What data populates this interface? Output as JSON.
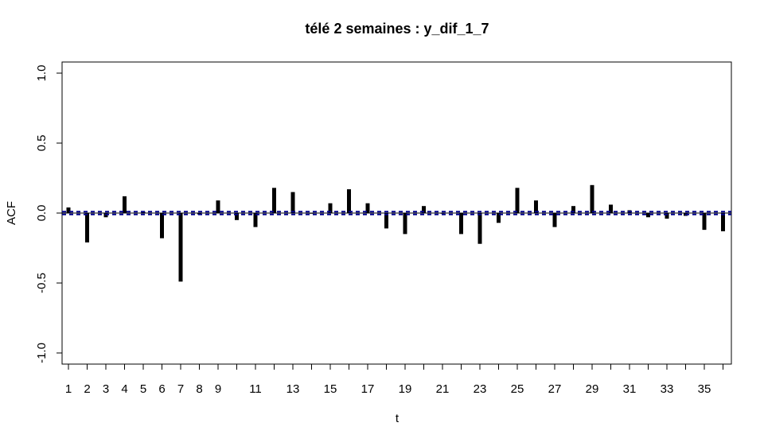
{
  "chart_data": {
    "type": "bar",
    "title": "télé 2 semaines : y_dif_1_7",
    "xlabel": "t",
    "ylabel": "ACF",
    "ylim": [
      -1.0,
      1.0
    ],
    "xlim": [
      0.5,
      36
    ],
    "x_ticks": [
      1,
      2,
      3,
      4,
      5,
      6,
      7,
      8,
      9,
      11,
      13,
      15,
      17,
      19,
      21,
      23,
      25,
      27,
      29,
      31,
      33,
      35
    ],
    "x_tick_labels": [
      "1",
      "2",
      "3",
      "4",
      "5",
      "6",
      "7",
      "8",
      "9",
      "11",
      "13",
      "15",
      "17",
      "19",
      "21",
      "23",
      "25",
      "27",
      "29",
      "31",
      "33",
      "35"
    ],
    "y_ticks": [
      -1.0,
      -0.5,
      0.0,
      0.5,
      1.0
    ],
    "y_tick_labels": [
      "-1.0",
      "-0.5",
      "0.0",
      "0.5",
      "1.0"
    ],
    "lags": [
      1,
      2,
      3,
      4,
      5,
      6,
      7,
      8,
      9,
      10,
      11,
      12,
      13,
      14,
      15,
      16,
      17,
      18,
      19,
      20,
      21,
      22,
      23,
      24,
      25,
      26,
      27,
      28,
      29,
      30,
      31,
      32,
      33,
      34,
      35,
      36
    ],
    "values": [
      0.04,
      -0.21,
      -0.03,
      0.12,
      0.01,
      -0.18,
      -0.49,
      -0.01,
      0.09,
      -0.05,
      -0.1,
      0.18,
      0.15,
      0.0,
      0.07,
      0.17,
      0.07,
      -0.11,
      -0.15,
      0.05,
      0.0,
      -0.15,
      -0.22,
      -0.07,
      0.18,
      0.09,
      -0.1,
      0.05,
      0.2,
      0.06,
      0.02,
      -0.03,
      -0.04,
      -0.02,
      -0.12,
      -0.13
    ],
    "confidence_bound": 0.01,
    "colors": {
      "bars": "#000000",
      "confidence": "#00008b",
      "zero_line": "#000000"
    },
    "grid": false,
    "legend": "none"
  }
}
